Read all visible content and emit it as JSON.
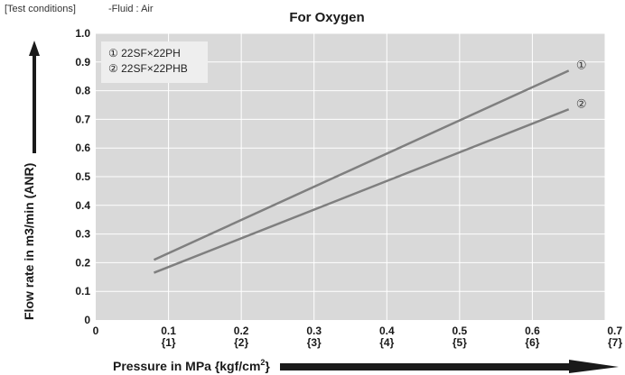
{
  "test_conditions": {
    "label": "[Test conditions]",
    "fluid": "-Fluid : Air"
  },
  "chart_data": {
    "type": "line",
    "title": "For Oxygen",
    "xlabel": "Pressure in MPa {kgf/cm",
    "xlabel_superscript": "2",
    "xlabel_suffix": "}",
    "ylabel": "Flow rate in m3/min (ANR)",
    "xlim": [
      0,
      0.7
    ],
    "ylim": [
      0,
      1.0
    ],
    "grid": true,
    "legend_position": "top-left",
    "background": "#d9d9d9",
    "line_color": "#7f7f7f",
    "x_ticks": [
      {
        "value": 0,
        "label": "0",
        "sub": ""
      },
      {
        "value": 0.1,
        "label": "0.1",
        "sub": "{1}"
      },
      {
        "value": 0.2,
        "label": "0.2",
        "sub": "{2}"
      },
      {
        "value": 0.3,
        "label": "0.3",
        "sub": "{3}"
      },
      {
        "value": 0.4,
        "label": "0.4",
        "sub": "{4}"
      },
      {
        "value": 0.5,
        "label": "0.5",
        "sub": "{5}"
      },
      {
        "value": 0.6,
        "label": "0.6",
        "sub": "{6}"
      },
      {
        "value": 0.7,
        "label": "0.7",
        "sub": "{7}"
      }
    ],
    "y_ticks": [
      {
        "value": 0,
        "label": "0"
      },
      {
        "value": 0.1,
        "label": "0.1"
      },
      {
        "value": 0.2,
        "label": "0.2"
      },
      {
        "value": 0.3,
        "label": "0.3"
      },
      {
        "value": 0.4,
        "label": "0.4"
      },
      {
        "value": 0.5,
        "label": "0.5"
      },
      {
        "value": 0.6,
        "label": "0.6"
      },
      {
        "value": 0.7,
        "label": "0.7"
      },
      {
        "value": 0.8,
        "label": "0.8"
      },
      {
        "value": 0.9,
        "label": "0.9"
      },
      {
        "value": 1.0,
        "label": "1.0"
      }
    ],
    "series": [
      {
        "name": "22SF×22PH",
        "marker": "①",
        "legend_label": "① 22SF×22PH",
        "x": [
          0.08,
          0.65
        ],
        "y": [
          0.21,
          0.87
        ]
      },
      {
        "name": "22SF×22PHB",
        "marker": "②",
        "legend_label": "② 22SF×22PHB",
        "x": [
          0.08,
          0.65
        ],
        "y": [
          0.165,
          0.735
        ]
      }
    ]
  }
}
